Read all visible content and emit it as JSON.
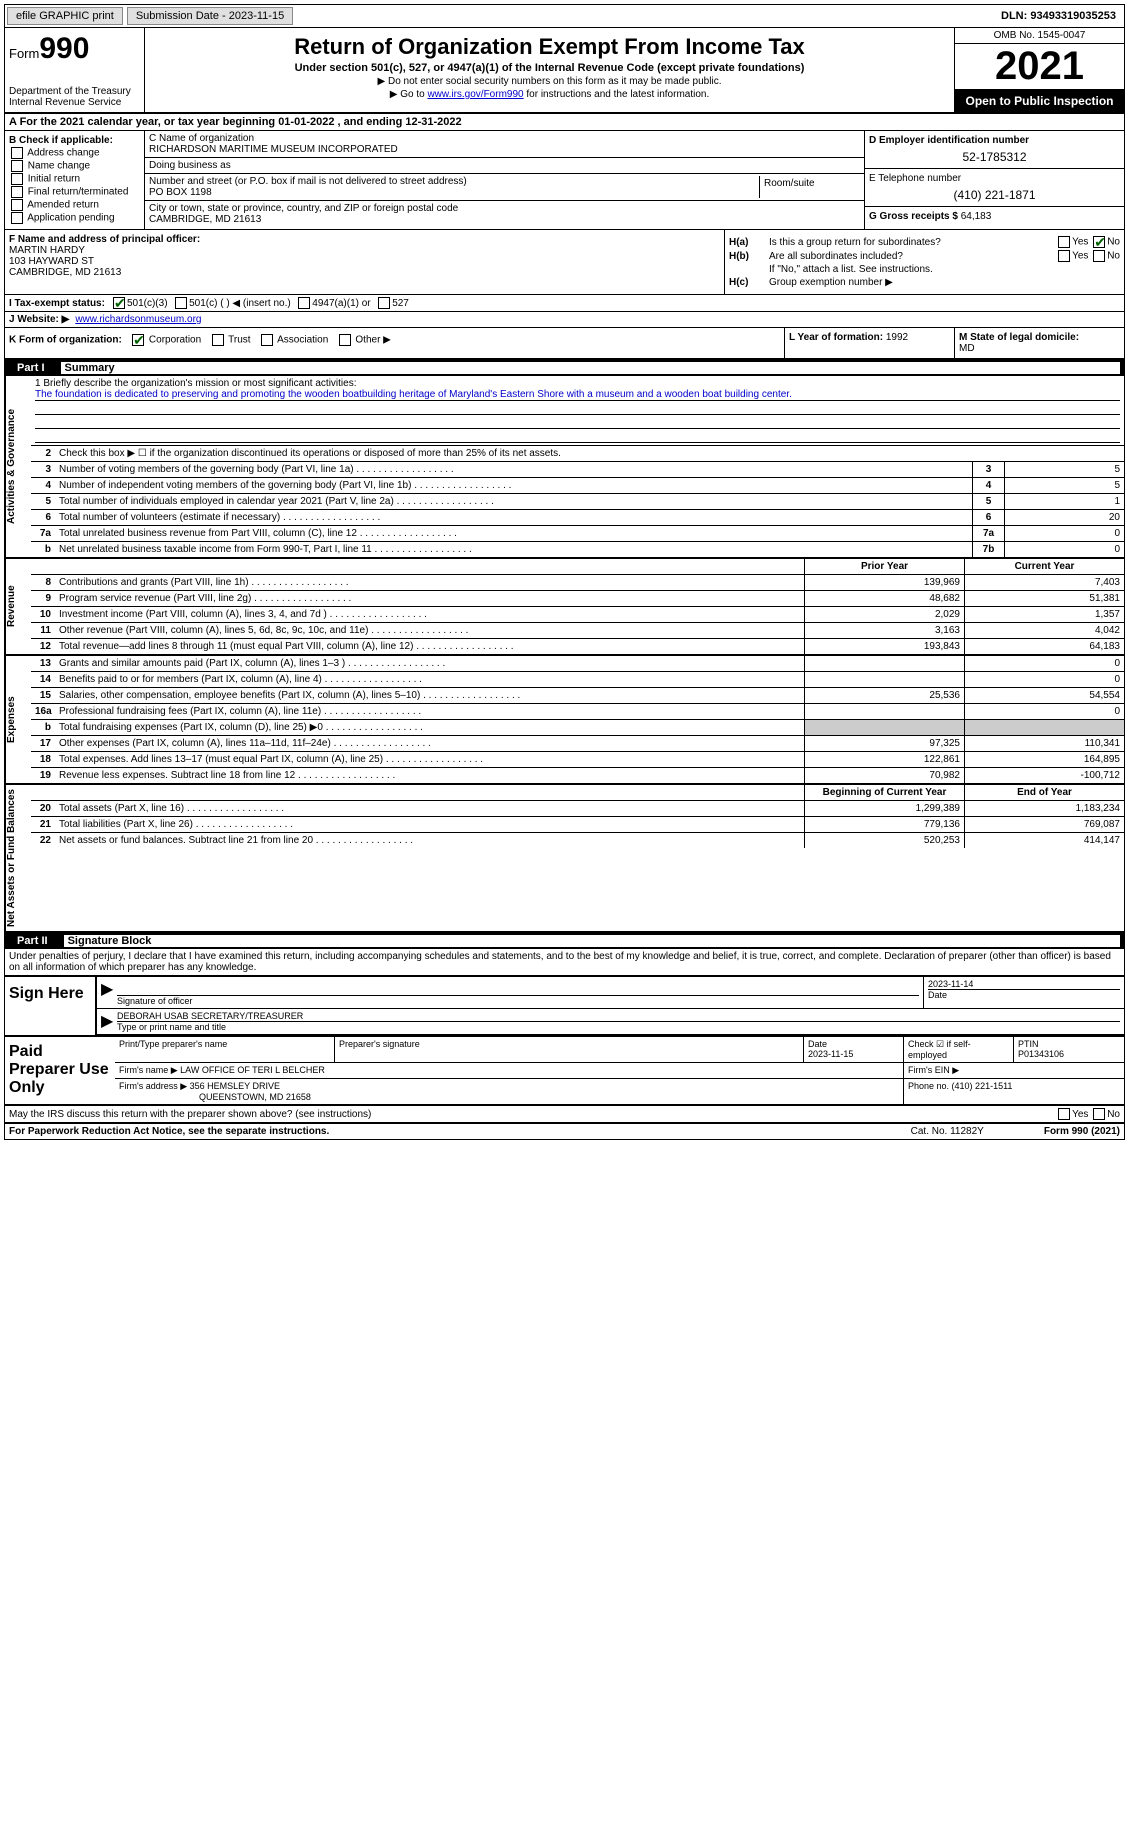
{
  "topbar": {
    "efile": "efile GRAPHIC print",
    "subdate_label": "Submission Date - ",
    "subdate": "2023-11-15",
    "dln_label": "DLN: ",
    "dln": "93493319035253"
  },
  "header": {
    "form_label": "Form",
    "form_number": "990",
    "dept": "Department of the Treasury\nInternal Revenue Service",
    "title": "Return of Organization Exempt From Income Tax",
    "subtitle": "Under section 501(c), 527, or 4947(a)(1) of the Internal Revenue Code (except private foundations)",
    "note1": "▶ Do not enter social security numbers on this form as it may be made public.",
    "note2_pre": "▶ Go to ",
    "note2_link": "www.irs.gov/Form990",
    "note2_post": " for instructions and the latest information.",
    "omb": "OMB No. 1545-0047",
    "year": "2021",
    "opento": "Open to Public Inspection"
  },
  "line_a": {
    "text": "A For the 2021 calendar year, or tax year beginning 01-01-2022    , and ending 12-31-2022"
  },
  "section_b": {
    "header": "B Check if applicable:",
    "items": [
      "Address change",
      "Name change",
      "Initial return",
      "Final return/terminated",
      "Amended return",
      "Application pending"
    ]
  },
  "section_c": {
    "name_label": "C Name of organization",
    "name": "RICHARDSON MARITIME MUSEUM INCORPORATED",
    "dba_label": "Doing business as",
    "dba": "",
    "street_label": "Number and street (or P.O. box if mail is not delivered to street address)",
    "room_label": "Room/suite",
    "street": "PO BOX 1198",
    "city_label": "City or town, state or province, country, and ZIP or foreign postal code",
    "city": "CAMBRIDGE, MD  21613"
  },
  "section_d": {
    "ein_label": "D Employer identification number",
    "ein": "52-1785312",
    "tel_label": "E Telephone number",
    "tel": "(410) 221-1871",
    "gross_label": "G Gross receipts $ ",
    "gross": "64,183"
  },
  "section_f": {
    "label": "F  Name and address of principal officer:",
    "name": "MARTIN HARDY",
    "addr1": "103 HAYWARD ST",
    "addr2": "CAMBRIDGE, MD  21613"
  },
  "section_h": {
    "ha_label": "H(a)",
    "ha_text": "Is this a group return for subordinates?",
    "hb_label": "H(b)",
    "hb_text": "Are all subordinates included?",
    "hb_note": "If \"No,\" attach a list. See instructions.",
    "hc_label": "H(c)",
    "hc_text": "Group exemption number ▶",
    "yes": "Yes",
    "no": "No"
  },
  "line_i": {
    "label": "I  Tax-exempt status:",
    "opts": [
      "501(c)(3)",
      "501(c) (  ) ◀ (insert no.)",
      "4947(a)(1) or",
      "527"
    ]
  },
  "line_j": {
    "label": "J  Website: ▶",
    "url": "www.richardsonmuseum.org"
  },
  "line_k": {
    "label": "K Form of organization:",
    "opts": [
      "Corporation",
      "Trust",
      "Association",
      "Other ▶"
    ]
  },
  "line_l": {
    "label": "L Year of formation: ",
    "val": "1992"
  },
  "line_m": {
    "label": "M State of legal domicile:",
    "val": "MD"
  },
  "part1": {
    "header_no": "Part I",
    "header_title": "Summary",
    "mission_label": "1   Briefly describe the organization's mission or most significant activities:",
    "mission_text": "The foundation is dedicated to preserving and promoting the wooden boatbuilding heritage of Maryland's Eastern Shore with a museum and a wooden boat building center.",
    "line2": "Check this box ▶ ☐ if the organization discontinued its operations or disposed of more than 25% of its net assets.",
    "governance_rows": [
      {
        "n": "3",
        "d": "Number of voting members of the governing body (Part VI, line 1a)",
        "box": "3",
        "v": "5"
      },
      {
        "n": "4",
        "d": "Number of independent voting members of the governing body (Part VI, line 1b)",
        "box": "4",
        "v": "5"
      },
      {
        "n": "5",
        "d": "Total number of individuals employed in calendar year 2021 (Part V, line 2a)",
        "box": "5",
        "v": "1"
      },
      {
        "n": "6",
        "d": "Total number of volunteers (estimate if necessary)",
        "box": "6",
        "v": "20"
      },
      {
        "n": "7a",
        "d": "Total unrelated business revenue from Part VIII, column (C), line 12",
        "box": "7a",
        "v": "0"
      },
      {
        "n": "b",
        "d": "Net unrelated business taxable income from Form 990-T, Part I, line 11",
        "box": "7b",
        "v": "0"
      }
    ],
    "py_label": "Prior Year",
    "cy_label": "Current Year",
    "revenue_rows": [
      {
        "n": "8",
        "d": "Contributions and grants (Part VIII, line 1h)",
        "py": "139,969",
        "cy": "7,403"
      },
      {
        "n": "9",
        "d": "Program service revenue (Part VIII, line 2g)",
        "py": "48,682",
        "cy": "51,381"
      },
      {
        "n": "10",
        "d": "Investment income (Part VIII, column (A), lines 3, 4, and 7d )",
        "py": "2,029",
        "cy": "1,357"
      },
      {
        "n": "11",
        "d": "Other revenue (Part VIII, column (A), lines 5, 6d, 8c, 9c, 10c, and 11e)",
        "py": "3,163",
        "cy": "4,042"
      },
      {
        "n": "12",
        "d": "Total revenue—add lines 8 through 11 (must equal Part VIII, column (A), line 12)",
        "py": "193,843",
        "cy": "64,183"
      }
    ],
    "expense_rows": [
      {
        "n": "13",
        "d": "Grants and similar amounts paid (Part IX, column (A), lines 1–3 )",
        "py": "",
        "cy": "0"
      },
      {
        "n": "14",
        "d": "Benefits paid to or for members (Part IX, column (A), line 4)",
        "py": "",
        "cy": "0"
      },
      {
        "n": "15",
        "d": "Salaries, other compensation, employee benefits (Part IX, column (A), lines 5–10)",
        "py": "25,536",
        "cy": "54,554"
      },
      {
        "n": "16a",
        "d": "Professional fundraising fees (Part IX, column (A), line 11e)",
        "py": "",
        "cy": "0"
      },
      {
        "n": "b",
        "d": "Total fundraising expenses (Part IX, column (D), line 25) ▶0",
        "py": "GREY",
        "cy": "GREY"
      },
      {
        "n": "17",
        "d": "Other expenses (Part IX, column (A), lines 11a–11d, 11f–24e)",
        "py": "97,325",
        "cy": "110,341"
      },
      {
        "n": "18",
        "d": "Total expenses. Add lines 13–17 (must equal Part IX, column (A), line 25)",
        "py": "122,861",
        "cy": "164,895"
      },
      {
        "n": "19",
        "d": "Revenue less expenses. Subtract line 18 from line 12",
        "py": "70,982",
        "cy": "-100,712"
      }
    ],
    "bcy_label": "Beginning of Current Year",
    "ecy_label": "End of Year",
    "netasset_rows": [
      {
        "n": "20",
        "d": "Total assets (Part X, line 16)",
        "py": "1,299,389",
        "cy": "1,183,234"
      },
      {
        "n": "21",
        "d": "Total liabilities (Part X, line 26)",
        "py": "779,136",
        "cy": "769,087"
      },
      {
        "n": "22",
        "d": "Net assets or fund balances. Subtract line 21 from line 20",
        "py": "520,253",
        "cy": "414,147"
      }
    ],
    "vlabels": {
      "gov": "Activities & Governance",
      "rev": "Revenue",
      "exp": "Expenses",
      "net": "Net Assets or Fund Balances"
    }
  },
  "part2": {
    "header_no": "Part II",
    "header_title": "Signature Block",
    "penalty": "Under penalties of perjury, I declare that I have examined this return, including accompanying schedules and statements, and to the best of my knowledge and belief, it is true, correct, and complete. Declaration of preparer (other than officer) is based on all information of which preparer has any knowledge.",
    "sign_label": "Sign Here",
    "sig_officer": "Signature of officer",
    "sig_date_label": "Date",
    "sig_date": "2023-11-14",
    "officer_name": "DEBORAH USAB  SECRETARY/TREASURER",
    "officer_sub": "Type or print name and title",
    "prep_label": "Paid Preparer Use Only",
    "prep_name_label": "Print/Type preparer's name",
    "prep_sig_label": "Preparer's signature",
    "prep_date_label": "Date",
    "prep_date": "2023-11-15",
    "prep_check_label": "Check ☑ if self-employed",
    "ptin_label": "PTIN",
    "ptin": "P01343106",
    "firm_name_label": "Firm's name     ▶ ",
    "firm_name": "LAW OFFICE OF TERI L BELCHER",
    "firm_ein_label": "Firm's EIN ▶",
    "firm_addr_label": "Firm's address ▶ ",
    "firm_addr1": "356 HEMSLEY DRIVE",
    "firm_addr2": "QUEENSTOWN, MD  21658",
    "firm_phone_label": "Phone no. ",
    "firm_phone": "(410) 221-1511",
    "discuss": "May the IRS discuss this return with the preparer shown above? (see instructions)"
  },
  "footer": {
    "paperwork": "For Paperwork Reduction Act Notice, see the separate instructions.",
    "cat": "Cat. No. 11282Y",
    "formrev": "Form 990 (2021)"
  },
  "colors": {
    "link": "#0000cc",
    "check": "#006000"
  }
}
